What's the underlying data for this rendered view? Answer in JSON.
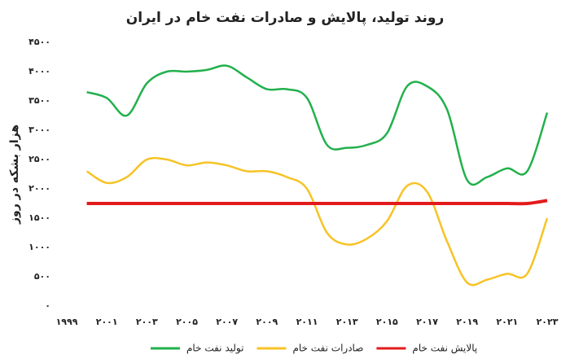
{
  "chart_data": {
    "type": "line",
    "title": "روند تولید، پالایش و صادرات نفت خام در ایران",
    "y_label": "هزار بشکه در روز",
    "x": [
      2000,
      2001,
      2002,
      2003,
      2004,
      2005,
      2006,
      2007,
      2008,
      2009,
      2010,
      2011,
      2012,
      2013,
      2014,
      2015,
      2016,
      2017,
      2018,
      2019,
      2020,
      2021,
      2022,
      2023
    ],
    "series": [
      {
        "name": "تولید نفت خام",
        "color": "#22b04c",
        "values": [
          3650,
          3550,
          3250,
          3800,
          4000,
          4000,
          4030,
          4100,
          3900,
          3700,
          3700,
          3550,
          2750,
          2700,
          2750,
          2950,
          3750,
          3750,
          3350,
          2150,
          2200,
          2350,
          2300,
          3300
        ]
      },
      {
        "name": "صادرات نفت خام",
        "color": "#f7c325",
        "values": [
          2300,
          2100,
          2200,
          2500,
          2500,
          2400,
          2450,
          2400,
          2300,
          2300,
          2200,
          2000,
          1250,
          1050,
          1150,
          1450,
          2050,
          1950,
          1100,
          400,
          450,
          550,
          550,
          1500
        ]
      },
      {
        "name": "پالایش نفت خام",
        "color": "#e31a1c",
        "values": [
          1750,
          1750,
          1750,
          1750,
          1750,
          1750,
          1750,
          1750,
          1750,
          1750,
          1750,
          1750,
          1750,
          1750,
          1750,
          1750,
          1750,
          1750,
          1750,
          1750,
          1750,
          1750,
          1750,
          1800
        ]
      }
    ],
    "xlim": [
      1999,
      2023
    ],
    "xticks": [
      {
        "value": 1999,
        "label": "۱۹۹۹"
      },
      {
        "value": 2001,
        "label": "۲۰۰۱"
      },
      {
        "value": 2003,
        "label": "۲۰۰۳"
      },
      {
        "value": 2005,
        "label": "۲۰۰۵"
      },
      {
        "value": 2007,
        "label": "۲۰۰۷"
      },
      {
        "value": 2009,
        "label": "۲۰۰۹"
      },
      {
        "value": 2011,
        "label": "۲۰۱۱"
      },
      {
        "value": 2013,
        "label": "۲۰۱۳"
      },
      {
        "value": 2015,
        "label": "۲۰۱۵"
      },
      {
        "value": 2017,
        "label": "۲۰۱۷"
      },
      {
        "value": 2019,
        "label": "۲۰۱۹"
      },
      {
        "value": 2021,
        "label": "۲۰۲۱"
      },
      {
        "value": 2023,
        "label": "۲۰۲۳"
      }
    ],
    "ylim": [
      0,
      4500
    ],
    "yticks": [
      {
        "value": 0,
        "label": "۰"
      },
      {
        "value": 500,
        "label": "۵۰۰"
      },
      {
        "value": 1000,
        "label": "۱۰۰۰"
      },
      {
        "value": 1500,
        "label": "۱۵۰۰"
      },
      {
        "value": 2000,
        "label": "۲۰۰۰"
      },
      {
        "value": 2500,
        "label": "۲۵۰۰"
      },
      {
        "value": 3000,
        "label": "۳۰۰۰"
      },
      {
        "value": 3500,
        "label": "۳۵۰۰"
      },
      {
        "value": 4000,
        "label": "۴۰۰۰"
      },
      {
        "value": 4500,
        "label": "۴۵۰۰"
      }
    ],
    "grid": false
  }
}
